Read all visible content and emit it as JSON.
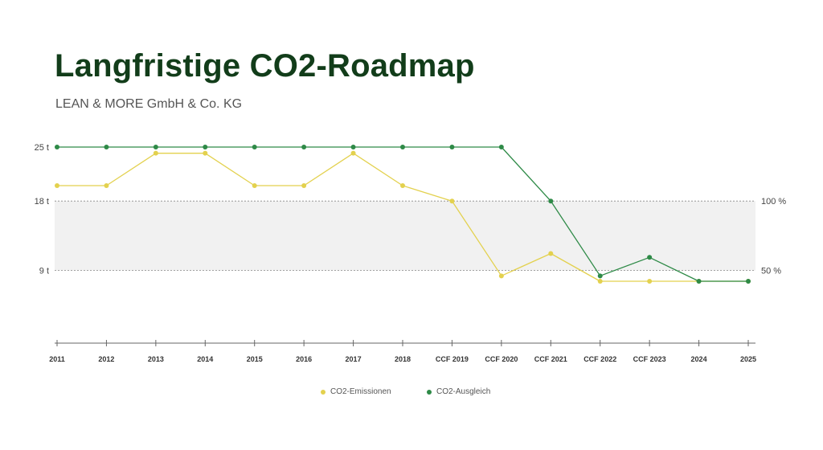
{
  "header": {
    "title": "Langfristige CO2-Roadmap",
    "subtitle": "LEAN & MORE GmbH & Co. KG"
  },
  "colors": {
    "emissions": "#e3d14e",
    "offset": "#2e8a47",
    "band": "#f1f1f1",
    "axis": "#666666"
  },
  "chart_data": {
    "type": "line",
    "title": "",
    "xlabel": "",
    "ylabel": "",
    "ylim": [
      0,
      25
    ],
    "categories": [
      "2011",
      "2012",
      "2013",
      "2014",
      "2015",
      "2016",
      "2017",
      "2018",
      "CCF 2019",
      "CCF 2020",
      "CCF 2021",
      "CCF 2022",
      "CCF 2023",
      "2024",
      "2025"
    ],
    "y_ticks": [
      {
        "value": 25,
        "label": "25 t"
      },
      {
        "value": 18,
        "label": "18 t"
      },
      {
        "value": 9,
        "label": "9 t"
      }
    ],
    "right_ticks": [
      {
        "value": 18,
        "label": "100 %"
      },
      {
        "value": 9,
        "label": "50 %"
      }
    ],
    "band": [
      9,
      18
    ],
    "series": [
      {
        "name": "CO2-Emissionen",
        "color": "#e3d14e",
        "values": [
          20,
          20,
          24.2,
          24.2,
          20,
          20,
          24.2,
          20,
          18,
          8.3,
          11.2,
          7.6,
          7.6,
          7.6,
          7.6
        ]
      },
      {
        "name": "CO2-Ausgleich",
        "color": "#2e8a47",
        "values": [
          25,
          25,
          25,
          25,
          25,
          25,
          25,
          25,
          25,
          25,
          18,
          8.3,
          10.7,
          7.6,
          7.6
        ]
      }
    ],
    "legend_position": "bottom",
    "grid": false
  }
}
